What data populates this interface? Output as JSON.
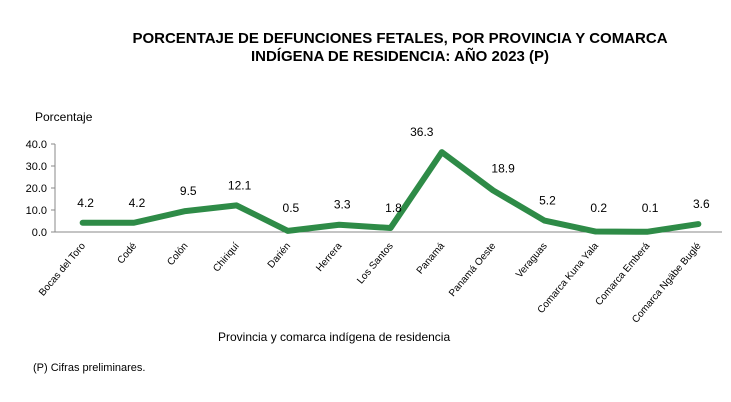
{
  "chart_data": {
    "type": "line",
    "title_line1": "PORCENTAJE DE DEFUNCIONES FETALES, POR PROVINCIA Y COMARCA",
    "title_line2": "INDÍGENA   DE RESIDENCIA: AÑO 2023 (P)",
    "ylabel": "Porcentaje",
    "xlabel": "Provincia  y comarca indígena  de residencia",
    "ylim": [
      0,
      40
    ],
    "yticks": [
      "0.0",
      "10.0",
      "20.0",
      "30.0",
      "40.0"
    ],
    "categories": [
      "Bocas del Toro",
      "Codé",
      "Colón",
      "Chiriquí",
      "Darién",
      "Herrera",
      "Los Santos",
      "Panamá",
      "Panamá Oeste",
      "Veraguas",
      "Comarca Kuna Yala",
      "Comarca Emberá",
      "Comarca Ngäbe Buglé"
    ],
    "values": [
      4.2,
      4.2,
      9.5,
      12.1,
      0.5,
      3.3,
      1.8,
      36.3,
      18.9,
      5.2,
      0.2,
      0.1,
      3.6
    ],
    "labels": [
      "4.2",
      "4.2",
      "9.5",
      "12.1",
      "0.5",
      "3.3",
      "1.8",
      "36.3",
      "18.9",
      "5.2",
      "0.2",
      "0.1",
      "3.6"
    ],
    "line_color": "#2e8b47",
    "grid": false,
    "legend": "none"
  },
  "footnote": "(P) Cifras preliminares."
}
